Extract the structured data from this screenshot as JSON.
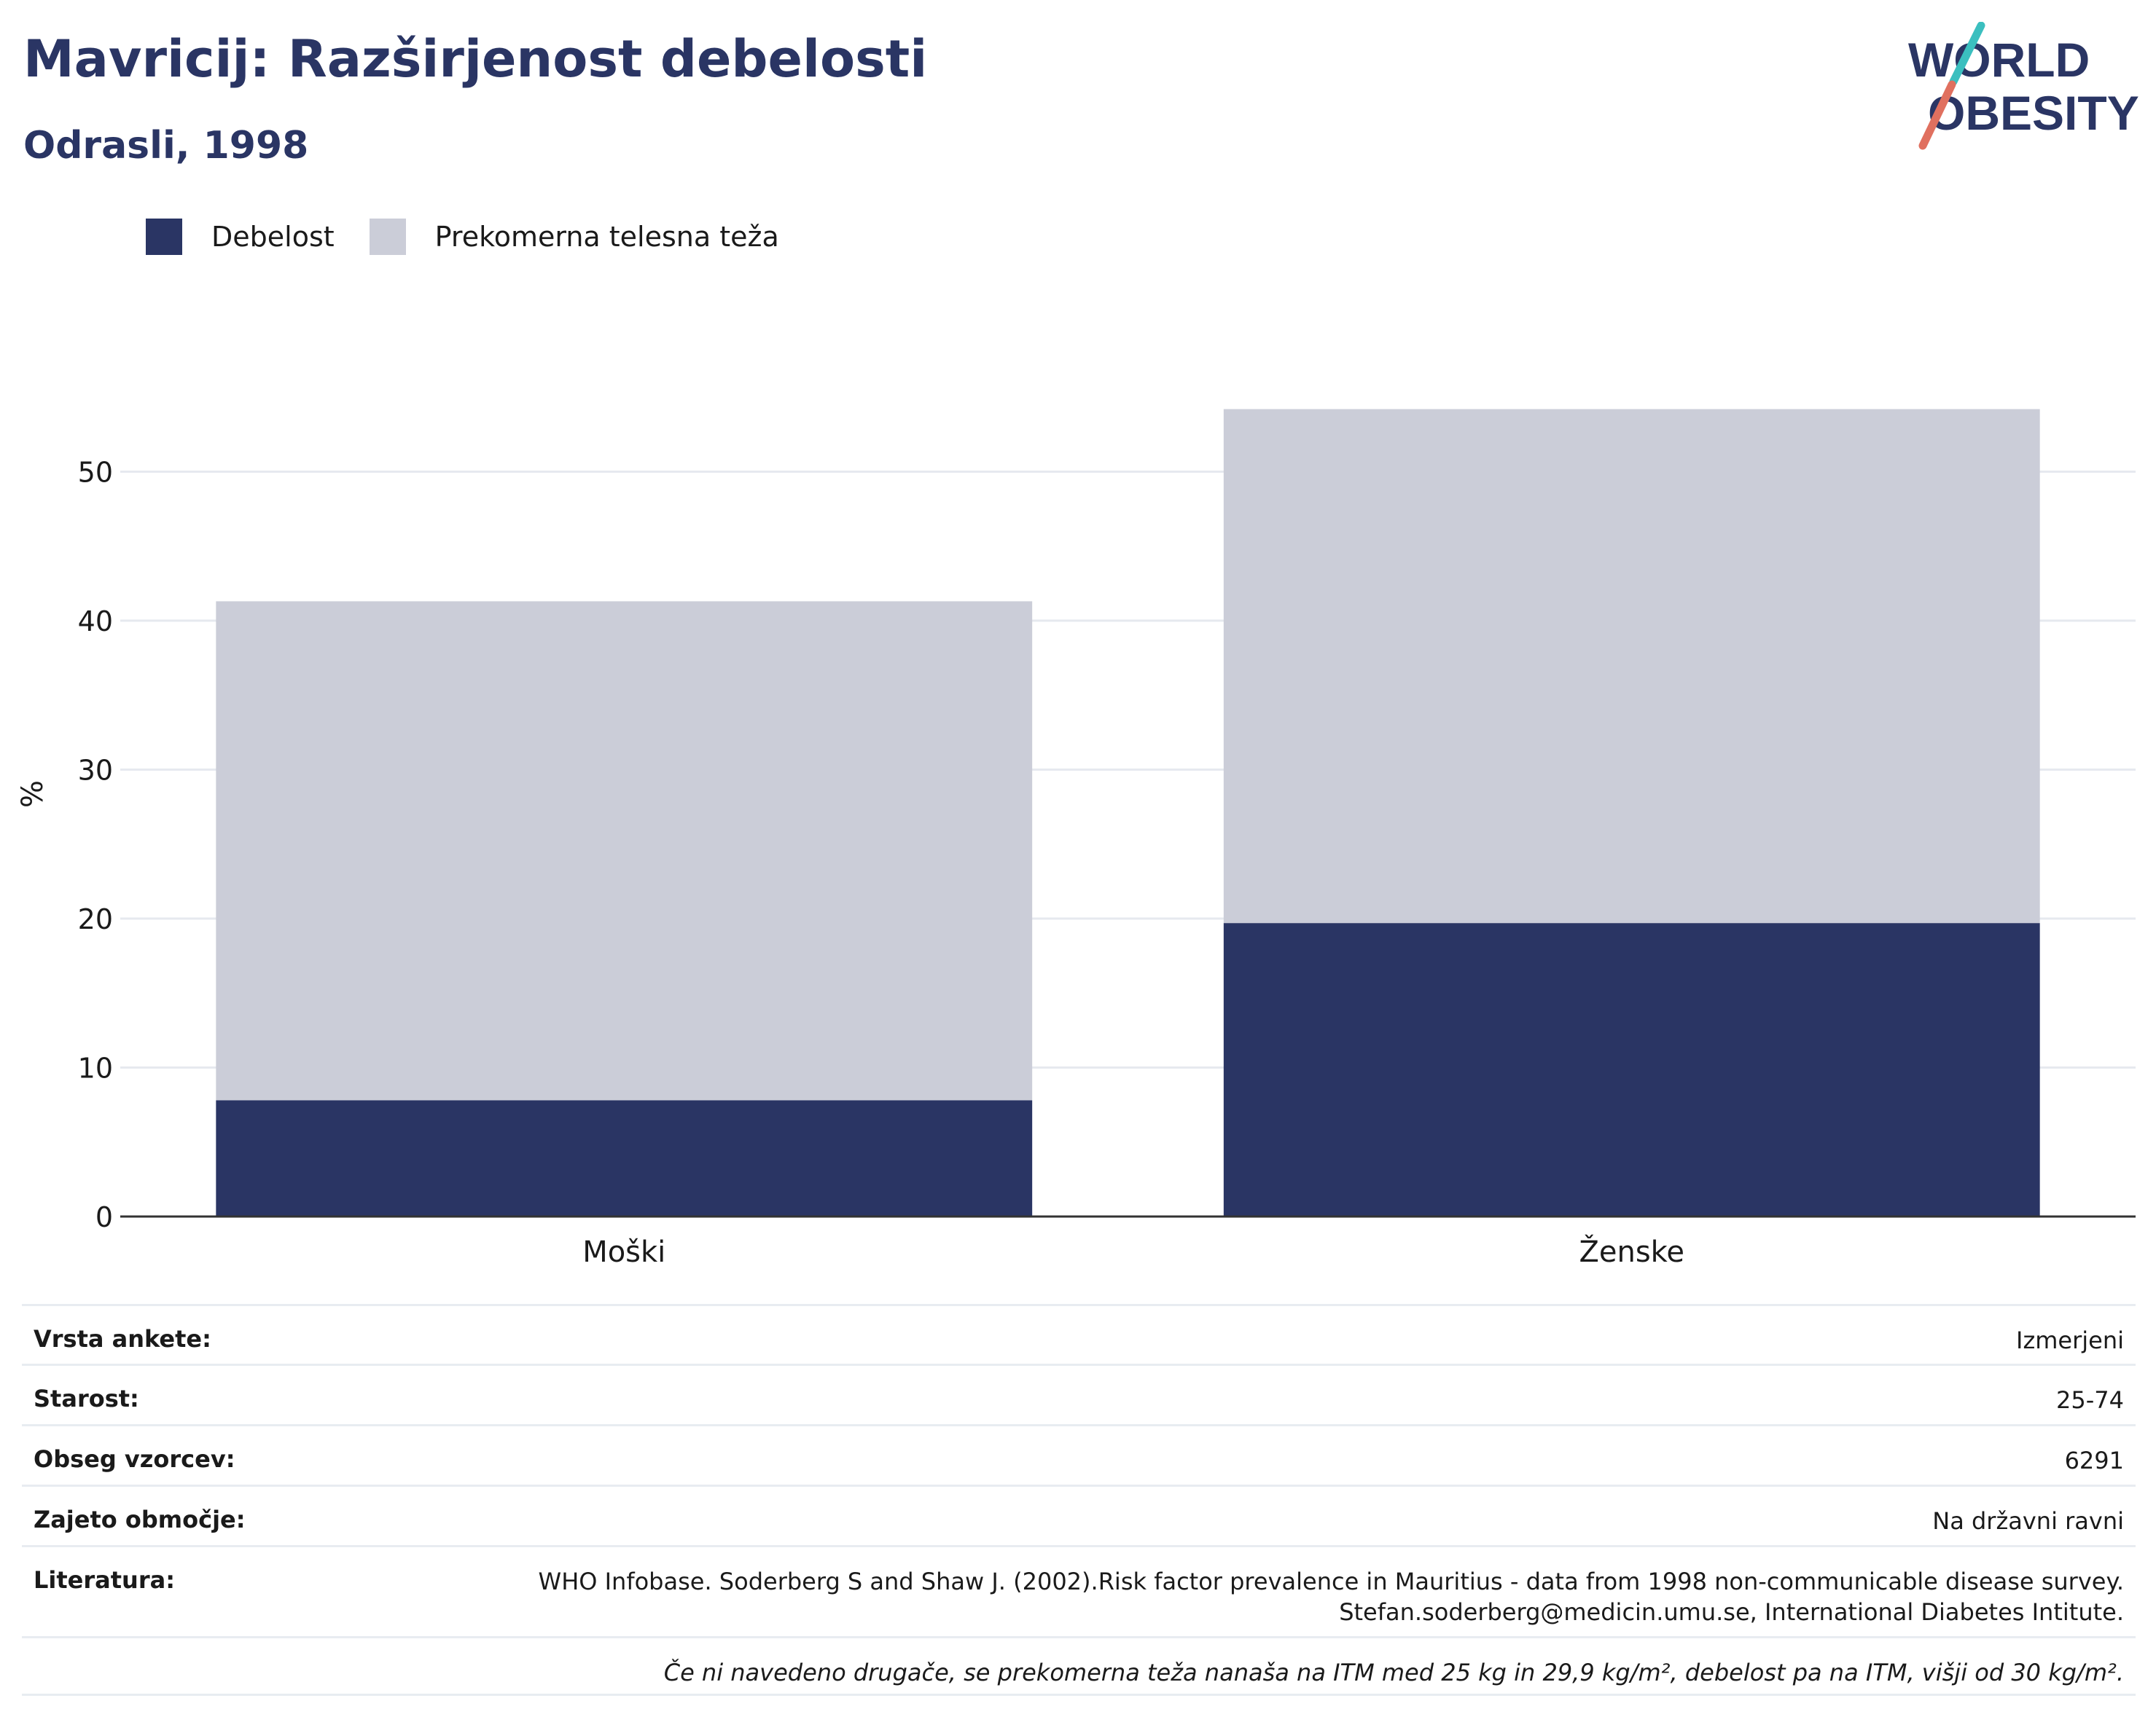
{
  "header": {
    "title": "Mavricij: Razširjenost debelosti",
    "subtitle": "Odrasli, 1998"
  },
  "logo": {
    "line1": "WORLD",
    "line2": "OBESITY",
    "colors": {
      "text": "#2a3564",
      "slash_top": "#3bbfbf",
      "slash_bottom": "#e0705f"
    }
  },
  "legend": {
    "items": [
      {
        "label": "Debelost",
        "color": "#2a3564"
      },
      {
        "label": "Prekomerna telesna teža",
        "color": "#cbcdd8"
      }
    ]
  },
  "chart_data": {
    "type": "bar",
    "stacked": true,
    "categories": [
      "Moški",
      "Ženske"
    ],
    "series": [
      {
        "name": "Debelost",
        "values": [
          7.8,
          19.7
        ],
        "color": "#2a3564"
      },
      {
        "name": "Prekomerna telesna teža",
        "values": [
          33.5,
          34.5
        ],
        "color": "#cbcdd8"
      }
    ],
    "ylabel": "%",
    "ylim": [
      0,
      55
    ],
    "yticks": [
      0,
      10,
      20,
      30,
      40,
      50
    ],
    "grid": true,
    "legend_position": "top-left"
  },
  "info": {
    "rows": [
      {
        "label": "Vrsta ankete:",
        "value": "Izmerjeni"
      },
      {
        "label": "Starost:",
        "value": "25-74"
      },
      {
        "label": "Obseg vzorcev:",
        "value": "6291"
      },
      {
        "label": "Zajeto območje:",
        "value": "Na državni ravni"
      }
    ],
    "reference": {
      "label": "Literatura:",
      "line1": "WHO Infobase. Soderberg S and Shaw J. (2002).Risk factor prevalence in Mauritius - data from 1998 non-communicable disease survey.",
      "line2": "Stefan.soderberg@medicin.umu.se, International Diabetes Intitute."
    },
    "note": "Če ni navedeno drugače, se prekomerna teža nanaša na ITM med 25 kg in 29,9 kg/m², debelost pa na ITM, višji od 30 kg/m²."
  }
}
